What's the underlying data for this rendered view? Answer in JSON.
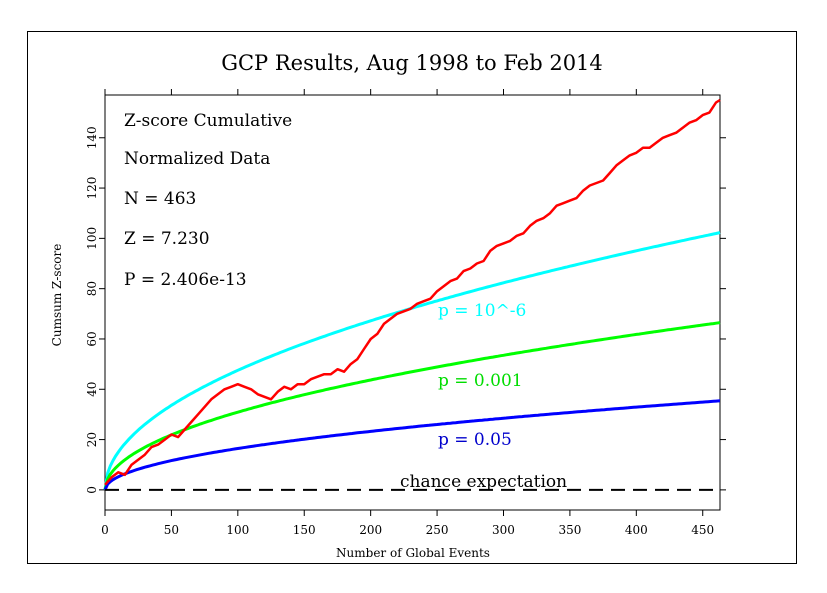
{
  "chart_data": {
    "type": "line",
    "title": "GCP Results, Aug 1998 to Feb 2014",
    "xlabel": "Number of Global Events",
    "ylabel": "Cumsum Z-score",
    "xlim": [
      0,
      463
    ],
    "ylim": [
      -8,
      157
    ],
    "x_ticks": [
      0,
      50,
      100,
      150,
      200,
      250,
      300,
      350,
      400,
      450
    ],
    "y_ticks": [
      0,
      20,
      40,
      60,
      80,
      100,
      120,
      140
    ],
    "info": {
      "line1": "Z-score Cumulative",
      "line2": "Normalized Data",
      "line3": "N = 463",
      "line4": "Z = 7.230",
      "line5": "P = 2.406e-13"
    },
    "series": [
      {
        "name": "Cumulative Z-score",
        "color": "#ff0000",
        "x": [
          0,
          5,
          10,
          15,
          20,
          25,
          30,
          35,
          40,
          45,
          50,
          55,
          60,
          65,
          70,
          75,
          80,
          85,
          90,
          95,
          100,
          105,
          110,
          115,
          120,
          125,
          130,
          135,
          140,
          145,
          150,
          155,
          160,
          165,
          170,
          175,
          180,
          185,
          190,
          195,
          200,
          205,
          210,
          215,
          220,
          225,
          230,
          235,
          240,
          245,
          250,
          255,
          260,
          265,
          270,
          275,
          280,
          285,
          290,
          295,
          300,
          305,
          310,
          315,
          320,
          325,
          330,
          335,
          340,
          345,
          350,
          355,
          360,
          365,
          370,
          375,
          380,
          385,
          390,
          395,
          400,
          405,
          410,
          415,
          420,
          425,
          430,
          435,
          440,
          445,
          450,
          455,
          460,
          463
        ],
        "values": [
          2,
          5,
          7,
          6,
          10,
          12,
          14,
          17,
          18,
          20,
          22,
          21,
          24,
          27,
          30,
          33,
          36,
          38,
          40,
          41,
          42,
          41,
          40,
          38,
          37,
          36,
          39,
          41,
          40,
          42,
          42,
          44,
          45,
          46,
          46,
          48,
          47,
          50,
          52,
          56,
          60,
          62,
          66,
          68,
          70,
          71,
          72,
          74,
          75,
          76,
          79,
          81,
          83,
          84,
          87,
          88,
          90,
          91,
          95,
          97,
          98,
          99,
          101,
          102,
          105,
          107,
          108,
          110,
          113,
          114,
          115,
          116,
          119,
          121,
          122,
          123,
          126,
          129,
          131,
          133,
          134,
          136,
          136,
          138,
          140,
          141,
          142,
          144,
          146,
          147,
          149,
          150,
          154,
          155
        ]
      },
      {
        "name": "p = 10^-6",
        "label": "p = 10^-6",
        "color": "#00ffff",
        "k": 4.753
      },
      {
        "name": "p = 0.001",
        "label": "p = 0.001",
        "color": "#00ff00",
        "k": 3.09
      },
      {
        "name": "p = 0.05",
        "label": "p = 0.05",
        "color": "#0000ff",
        "k": 1.645
      },
      {
        "name": "chance expectation",
        "label": "chance expectation",
        "color": "#000000",
        "k": 0
      }
    ]
  }
}
